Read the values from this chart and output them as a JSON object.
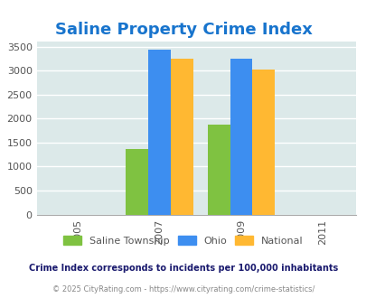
{
  "title": "Saline Property Crime Index",
  "title_color": "#1874cd",
  "title_fontsize": 13,
  "years": [
    2007,
    2009
  ],
  "x_ticks": [
    2005,
    2007,
    2009,
    2011
  ],
  "saline": [
    1370,
    1870
  ],
  "ohio": [
    3440,
    3240
  ],
  "national": [
    3240,
    3020
  ],
  "bar_colors": {
    "saline": "#7fc241",
    "ohio": "#3d8ef0",
    "national": "#ffb832"
  },
  "bar_width": 0.55,
  "ylim": [
    0,
    3600
  ],
  "yticks": [
    0,
    500,
    1000,
    1500,
    2000,
    2500,
    3000,
    3500
  ],
  "xlim": [
    2004.0,
    2011.8
  ],
  "background_color": "#dce9e9",
  "legend_labels": [
    "Saline Township",
    "Ohio",
    "National"
  ],
  "footnote1": "Crime Index corresponds to incidents per 100,000 inhabitants",
  "footnote2": "© 2025 CityRating.com - https://www.cityrating.com/crime-statistics/",
  "footnote1_color": "#1a1a6e",
  "footnote2_color": "#888888",
  "gridcolor": "#ffffff",
  "tick_label_color": "#555555"
}
